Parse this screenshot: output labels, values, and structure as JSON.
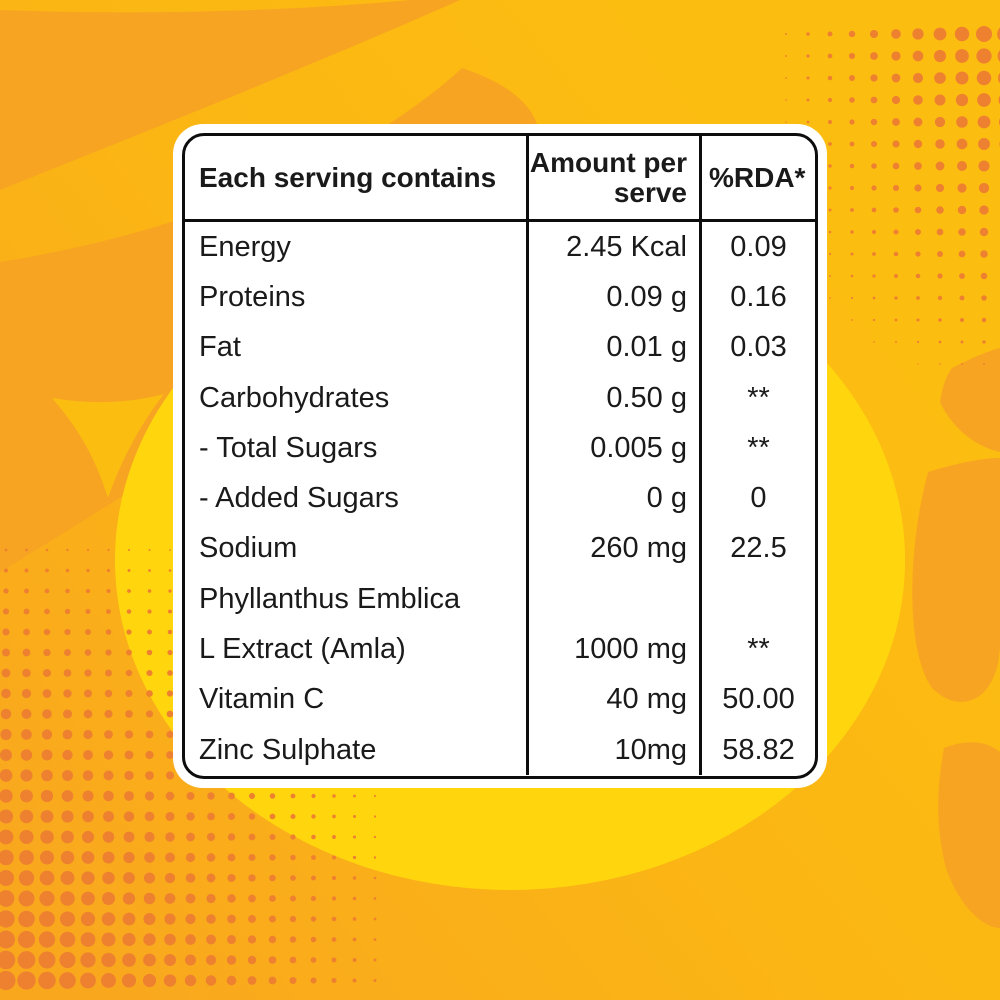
{
  "table": {
    "header": {
      "col1": "Each serving contains",
      "col2": "Amount per\nserve",
      "col3": "%RDA*"
    },
    "rows": [
      {
        "name": "Energy",
        "amount": "2.45 Kcal",
        "rda": "0.09"
      },
      {
        "name": "Proteins",
        "amount": "0.09 g",
        "rda": "0.16"
      },
      {
        "name": "Fat",
        "amount": "0.01 g",
        "rda": "0.03"
      },
      {
        "name": "Carbohydrates",
        "amount": "0.50 g",
        "rda": "**"
      },
      {
        "name": "- Total Sugars",
        "amount": "0.005 g",
        "rda": "**"
      },
      {
        "name": "- Added Sugars",
        "amount": "0 g",
        "rda": "0"
      },
      {
        "name": "Sodium",
        "amount": "260 mg",
        "rda": "22.5"
      },
      {
        "name": "Phyllanthus Emblica",
        "amount": "",
        "rda": ""
      },
      {
        "name": "L Extract (Amla)",
        "amount": "1000 mg",
        "rda": "**"
      },
      {
        "name": "Vitamin C",
        "amount": "40 mg",
        "rda": "50.00"
      },
      {
        "name": "Zinc Sulphate",
        "amount": "10mg",
        "rda": "58.82"
      }
    ]
  },
  "colors": {
    "background_yellow": "#FCBD11",
    "background_orange": "#F9A81E",
    "swoosh_orange": "#F7A422",
    "dot_orange": "#EE8130",
    "glow_yellow": "#FFD60E",
    "card_white": "#FFFFFF",
    "table_border_black": "#0D0D0D",
    "text_black": "#1A1A1A"
  }
}
